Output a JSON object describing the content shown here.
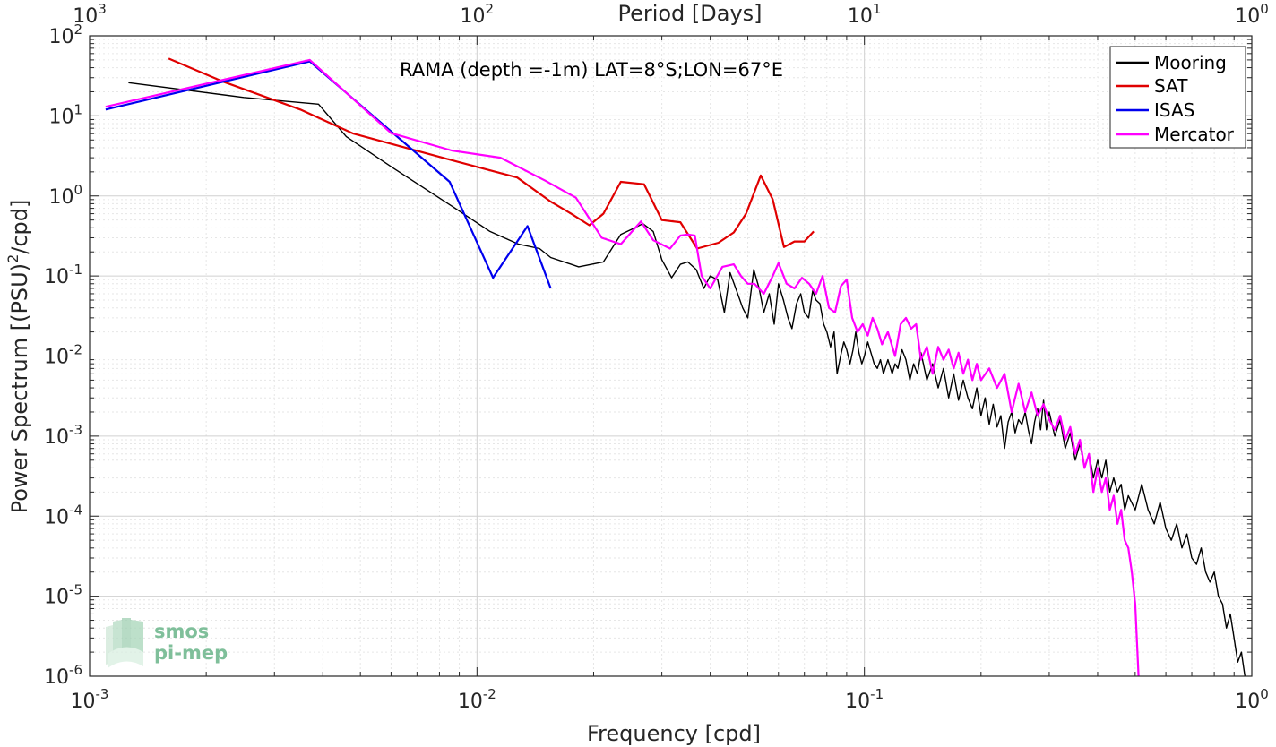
{
  "chart_data": {
    "type": "line",
    "title": "RAMA (depth =-1m) LAT=8°S;LON=67°E",
    "xlabel": "Frequency [cpd]",
    "ylabel_main": "Power Spectrum [(PSU)",
    "ylabel_sup": "2",
    "ylabel_tail": "/cpd]",
    "top_xlabel": "Period [Days]",
    "xscale": "log",
    "yscale": "log",
    "xlim": [
      0.001,
      1
    ],
    "ylim": [
      1e-06,
      100
    ],
    "grid": true,
    "legend_position": "top-right",
    "x_ticks": [
      {
        "value": 0.001,
        "base": "10",
        "exp": "-3"
      },
      {
        "value": 0.01,
        "base": "10",
        "exp": "-2"
      },
      {
        "value": 0.1,
        "base": "10",
        "exp": "-1"
      },
      {
        "value": 1,
        "base": "10",
        "exp": "0"
      }
    ],
    "y_ticks": [
      {
        "value": 1e-06,
        "base": "10",
        "exp": "-6"
      },
      {
        "value": 1e-05,
        "base": "10",
        "exp": "-5"
      },
      {
        "value": 0.0001,
        "base": "10",
        "exp": "-4"
      },
      {
        "value": 0.001,
        "base": "10",
        "exp": "-3"
      },
      {
        "value": 0.01,
        "base": "10",
        "exp": "-2"
      },
      {
        "value": 0.1,
        "base": "10",
        "exp": "-1"
      },
      {
        "value": 1,
        "base": "10",
        "exp": "0"
      },
      {
        "value": 10,
        "base": "10",
        "exp": "1"
      },
      {
        "value": 100,
        "base": "10",
        "exp": "2"
      }
    ],
    "top_ticks": [
      {
        "value": 0.001,
        "base": "10",
        "exp": "3"
      },
      {
        "value": 0.01,
        "base": "10",
        "exp": "2"
      },
      {
        "value": 0.1,
        "base": "10",
        "exp": "1"
      },
      {
        "value": 1,
        "base": "10",
        "exp": "0"
      }
    ],
    "series": [
      {
        "name": "Mooring",
        "color": "#000000",
        "values": [
          [
            0.00126,
            26
          ],
          [
            0.0025,
            17
          ],
          [
            0.0039,
            14
          ],
          [
            0.0046,
            5.5
          ],
          [
            0.0061,
            2.2
          ],
          [
            0.0086,
            0.75
          ],
          [
            0.0108,
            0.36
          ],
          [
            0.0128,
            0.25
          ],
          [
            0.0145,
            0.22
          ],
          [
            0.0155,
            0.17
          ],
          [
            0.0183,
            0.13
          ],
          [
            0.0212,
            0.15
          ],
          [
            0.0235,
            0.33
          ],
          [
            0.025,
            0.38
          ],
          [
            0.0268,
            0.45
          ],
          [
            0.0285,
            0.36
          ],
          [
            0.03,
            0.16
          ],
          [
            0.0318,
            0.095
          ],
          [
            0.0335,
            0.14
          ],
          [
            0.035,
            0.15
          ],
          [
            0.0368,
            0.12
          ],
          [
            0.0385,
            0.07
          ],
          [
            0.04,
            0.1
          ],
          [
            0.0418,
            0.09
          ],
          [
            0.0435,
            0.035
          ],
          [
            0.045,
            0.11
          ],
          [
            0.0468,
            0.065
          ],
          [
            0.0485,
            0.04
          ],
          [
            0.05,
            0.03
          ],
          [
            0.0518,
            0.12
          ],
          [
            0.0535,
            0.07
          ],
          [
            0.055,
            0.035
          ],
          [
            0.0568,
            0.06
          ],
          [
            0.0585,
            0.025
          ],
          [
            0.06,
            0.08
          ],
          [
            0.0618,
            0.05
          ],
          [
            0.0635,
            0.03
          ],
          [
            0.065,
            0.022
          ],
          [
            0.0668,
            0.045
          ],
          [
            0.0685,
            0.06
          ],
          [
            0.07,
            0.035
          ],
          [
            0.0718,
            0.03
          ],
          [
            0.0735,
            0.065
          ],
          [
            0.075,
            0.05
          ],
          [
            0.0768,
            0.045
          ],
          [
            0.0785,
            0.025
          ],
          [
            0.08,
            0.02
          ],
          [
            0.0818,
            0.013
          ],
          [
            0.0835,
            0.02
          ],
          [
            0.085,
            0.006
          ],
          [
            0.0868,
            0.01
          ],
          [
            0.0885,
            0.015
          ],
          [
            0.09,
            0.012
          ],
          [
            0.0918,
            0.008
          ],
          [
            0.0935,
            0.012
          ],
          [
            0.095,
            0.02
          ],
          [
            0.0968,
            0.011
          ],
          [
            0.0985,
            0.008
          ],
          [
            0.1,
            0.01
          ],
          [
            0.102,
            0.015
          ],
          [
            0.104,
            0.011
          ],
          [
            0.106,
            0.008
          ],
          [
            0.108,
            0.007
          ],
          [
            0.11,
            0.009
          ],
          [
            0.112,
            0.006
          ],
          [
            0.115,
            0.009
          ],
          [
            0.118,
            0.006
          ],
          [
            0.12,
            0.008
          ],
          [
            0.122,
            0.007
          ],
          [
            0.125,
            0.012
          ],
          [
            0.128,
            0.009
          ],
          [
            0.131,
            0.005
          ],
          [
            0.134,
            0.008
          ],
          [
            0.137,
            0.006
          ],
          [
            0.14,
            0.011
          ],
          [
            0.145,
            0.005
          ],
          [
            0.15,
            0.008
          ],
          [
            0.155,
            0.004
          ],
          [
            0.16,
            0.007
          ],
          [
            0.165,
            0.003
          ],
          [
            0.17,
            0.006
          ],
          [
            0.175,
            0.0028
          ],
          [
            0.18,
            0.005
          ],
          [
            0.185,
            0.003
          ],
          [
            0.19,
            0.0022
          ],
          [
            0.195,
            0.004
          ],
          [
            0.2,
            0.0018
          ],
          [
            0.205,
            0.003
          ],
          [
            0.21,
            0.0014
          ],
          [
            0.215,
            0.0025
          ],
          [
            0.22,
            0.0013
          ],
          [
            0.225,
            0.0018
          ],
          [
            0.23,
            0.0007
          ],
          [
            0.235,
            0.0015
          ],
          [
            0.24,
            0.002
          ],
          [
            0.245,
            0.0011
          ],
          [
            0.25,
            0.0016
          ],
          [
            0.255,
            0.0014
          ],
          [
            0.26,
            0.002
          ],
          [
            0.265,
            0.0012
          ],
          [
            0.27,
            0.0008
          ],
          [
            0.275,
            0.0015
          ],
          [
            0.28,
            0.0022
          ],
          [
            0.285,
            0.0012
          ],
          [
            0.29,
            0.0028
          ],
          [
            0.295,
            0.0012
          ],
          [
            0.3,
            0.002
          ],
          [
            0.31,
            0.001
          ],
          [
            0.32,
            0.0016
          ],
          [
            0.33,
            0.0007
          ],
          [
            0.34,
            0.0011
          ],
          [
            0.35,
            0.0005
          ],
          [
            0.36,
            0.0008
          ],
          [
            0.37,
            0.0004
          ],
          [
            0.38,
            0.0006
          ],
          [
            0.39,
            0.0003
          ],
          [
            0.4,
            0.0005
          ],
          [
            0.41,
            0.0003
          ],
          [
            0.42,
            0.0005
          ],
          [
            0.43,
            0.0002
          ],
          [
            0.44,
            0.0003
          ],
          [
            0.45,
            0.0002
          ],
          [
            0.46,
            0.00025
          ],
          [
            0.47,
            0.00012
          ],
          [
            0.48,
            0.00018
          ],
          [
            0.5,
            0.00012
          ],
          [
            0.52,
            0.00025
          ],
          [
            0.54,
            0.00012
          ],
          [
            0.56,
            8e-05
          ],
          [
            0.58,
            0.00015
          ],
          [
            0.6,
            7e-05
          ],
          [
            0.62,
            5e-05
          ],
          [
            0.64,
            8e-05
          ],
          [
            0.66,
            4e-05
          ],
          [
            0.68,
            6e-05
          ],
          [
            0.7,
            3e-05
          ],
          [
            0.72,
            2.5e-05
          ],
          [
            0.74,
            4e-05
          ],
          [
            0.76,
            2e-05
          ],
          [
            0.78,
            1.5e-05
          ],
          [
            0.8,
            2e-05
          ],
          [
            0.82,
            1e-05
          ],
          [
            0.84,
            8e-06
          ],
          [
            0.86,
            4e-06
          ],
          [
            0.88,
            6e-06
          ],
          [
            0.9,
            3e-06
          ],
          [
            0.92,
            1.5e-06
          ],
          [
            0.94,
            2e-06
          ],
          [
            0.96,
            1e-06
          ]
        ]
      },
      {
        "name": "SAT",
        "color": "#e00000",
        "values": [
          [
            0.0016,
            52
          ],
          [
            0.0022,
            27
          ],
          [
            0.0035,
            12
          ],
          [
            0.0048,
            6
          ],
          [
            0.0086,
            2.8
          ],
          [
            0.0127,
            1.7
          ],
          [
            0.0155,
            0.85
          ],
          [
            0.0175,
            0.6
          ],
          [
            0.0195,
            0.43
          ],
          [
            0.0212,
            0.6
          ],
          [
            0.0235,
            1.5
          ],
          [
            0.027,
            1.4
          ],
          [
            0.03,
            0.5
          ],
          [
            0.0335,
            0.47
          ],
          [
            0.037,
            0.22
          ],
          [
            0.042,
            0.26
          ],
          [
            0.046,
            0.35
          ],
          [
            0.0495,
            0.6
          ],
          [
            0.054,
            1.8
          ],
          [
            0.058,
            0.9
          ],
          [
            0.062,
            0.23
          ],
          [
            0.066,
            0.27
          ],
          [
            0.07,
            0.27
          ],
          [
            0.074,
            0.36
          ]
        ]
      },
      {
        "name": "ISAS",
        "color": "#0000ee",
        "values": [
          [
            0.0011,
            12
          ],
          [
            0.0037,
            48
          ],
          [
            0.0085,
            1.5
          ],
          [
            0.011,
            0.095
          ],
          [
            0.0135,
            0.42
          ],
          [
            0.0155,
            0.07
          ]
        ]
      },
      {
        "name": "Mercator",
        "color": "#ff00ff",
        "values": [
          [
            0.0011,
            13
          ],
          [
            0.0037,
            50
          ],
          [
            0.006,
            6.1
          ],
          [
            0.0086,
            3.7
          ],
          [
            0.0115,
            3
          ],
          [
            0.015,
            1.55
          ],
          [
            0.018,
            0.95
          ],
          [
            0.021,
            0.3
          ],
          [
            0.0235,
            0.25
          ],
          [
            0.0265,
            0.48
          ],
          [
            0.0285,
            0.28
          ],
          [
            0.0315,
            0.22
          ],
          [
            0.0335,
            0.32
          ],
          [
            0.035,
            0.33
          ],
          [
            0.0365,
            0.32
          ],
          [
            0.038,
            0.1
          ],
          [
            0.04,
            0.07
          ],
          [
            0.043,
            0.13
          ],
          [
            0.046,
            0.14
          ],
          [
            0.048,
            0.1
          ],
          [
            0.05,
            0.08
          ],
          [
            0.052,
            0.08
          ],
          [
            0.055,
            0.06
          ],
          [
            0.058,
            0.1
          ],
          [
            0.06,
            0.145
          ],
          [
            0.063,
            0.08
          ],
          [
            0.066,
            0.07
          ],
          [
            0.069,
            0.095
          ],
          [
            0.072,
            0.08
          ],
          [
            0.075,
            0.06
          ],
          [
            0.078,
            0.1
          ],
          [
            0.081,
            0.04
          ],
          [
            0.084,
            0.035
          ],
          [
            0.087,
            0.075
          ],
          [
            0.09,
            0.09
          ],
          [
            0.093,
            0.03
          ],
          [
            0.096,
            0.02
          ],
          [
            0.099,
            0.025
          ],
          [
            0.102,
            0.018
          ],
          [
            0.105,
            0.03
          ],
          [
            0.108,
            0.022
          ],
          [
            0.111,
            0.014
          ],
          [
            0.115,
            0.02
          ],
          [
            0.12,
            0.01
          ],
          [
            0.124,
            0.025
          ],
          [
            0.128,
            0.03
          ],
          [
            0.132,
            0.022
          ],
          [
            0.136,
            0.025
          ],
          [
            0.14,
            0.009
          ],
          [
            0.145,
            0.013
          ],
          [
            0.15,
            0.006
          ],
          [
            0.155,
            0.013
          ],
          [
            0.16,
            0.009
          ],
          [
            0.165,
            0.012
          ],
          [
            0.17,
            0.007
          ],
          [
            0.175,
            0.011
          ],
          [
            0.18,
            0.006
          ],
          [
            0.185,
            0.009
          ],
          [
            0.19,
            0.005
          ],
          [
            0.195,
            0.008
          ],
          [
            0.2,
            0.005
          ],
          [
            0.21,
            0.007
          ],
          [
            0.22,
            0.004
          ],
          [
            0.23,
            0.006
          ],
          [
            0.24,
            0.002
          ],
          [
            0.25,
            0.0045
          ],
          [
            0.26,
            0.002
          ],
          [
            0.27,
            0.0035
          ],
          [
            0.28,
            0.0018
          ],
          [
            0.29,
            0.0025
          ],
          [
            0.3,
            0.0016
          ],
          [
            0.31,
            0.0012
          ],
          [
            0.32,
            0.0018
          ],
          [
            0.33,
            0.0009
          ],
          [
            0.34,
            0.0013
          ],
          [
            0.35,
            0.0006
          ],
          [
            0.36,
            0.0009
          ],
          [
            0.37,
            0.0004
          ],
          [
            0.38,
            0.0006
          ],
          [
            0.39,
            0.0002
          ],
          [
            0.4,
            0.0004
          ],
          [
            0.41,
            0.0002
          ],
          [
            0.42,
            0.0003
          ],
          [
            0.43,
            0.00012
          ],
          [
            0.44,
            0.00018
          ],
          [
            0.45,
            8e-05
          ],
          [
            0.46,
            0.00012
          ],
          [
            0.47,
            5e-05
          ],
          [
            0.48,
            4e-05
          ],
          [
            0.49,
            2e-05
          ],
          [
            0.5,
            8e-06
          ],
          [
            0.51,
            1e-06
          ]
        ]
      }
    ]
  },
  "logo": {
    "line1": "smos",
    "line2": "pi-mep"
  }
}
